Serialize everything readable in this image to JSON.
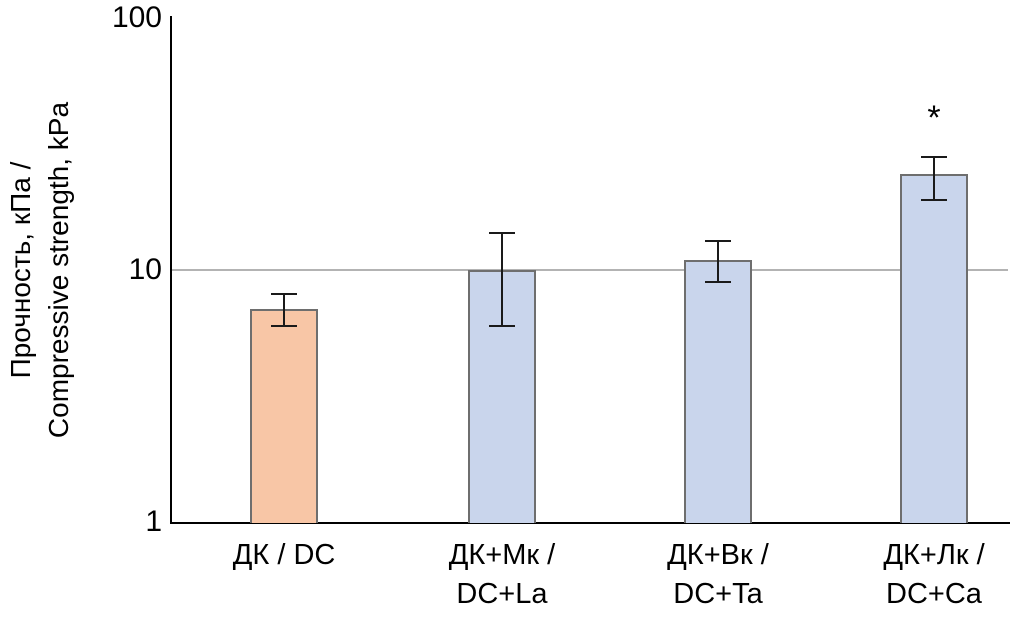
{
  "chart_data": {
    "type": "bar",
    "title": "",
    "ylabel": "Прочность, кПа /\nCompressive strength, kPa",
    "xlabel": "",
    "y_scale": "log",
    "ylim": [
      1,
      100
    ],
    "yticks": [
      100,
      10,
      1
    ],
    "gridlines": [
      10
    ],
    "grid_on": true,
    "legend_position": "none",
    "categories": [
      "ДК / DC",
      "ДК+Мк /\nDC+La",
      "ДК+Вк /\nDC+Ta",
      "ДК+Лк /\nDC+Ca"
    ],
    "values": [
      7,
      10,
      11,
      24
    ],
    "error_low": [
      6,
      6,
      9,
      19
    ],
    "error_high": [
      8,
      14,
      13,
      28
    ],
    "annotations": [
      {
        "bar_index": 3,
        "text": "*"
      }
    ],
    "colors": {
      "bar_fill": [
        "#f8c6a6",
        "#c9d5ec",
        "#c9d5ec",
        "#c9d5ec"
      ],
      "bar_border": "#6e6e6e",
      "error_bar": "#1a1a1a",
      "axis": "#000000",
      "grid": "#b3b3b3",
      "text": "#000000"
    }
  }
}
